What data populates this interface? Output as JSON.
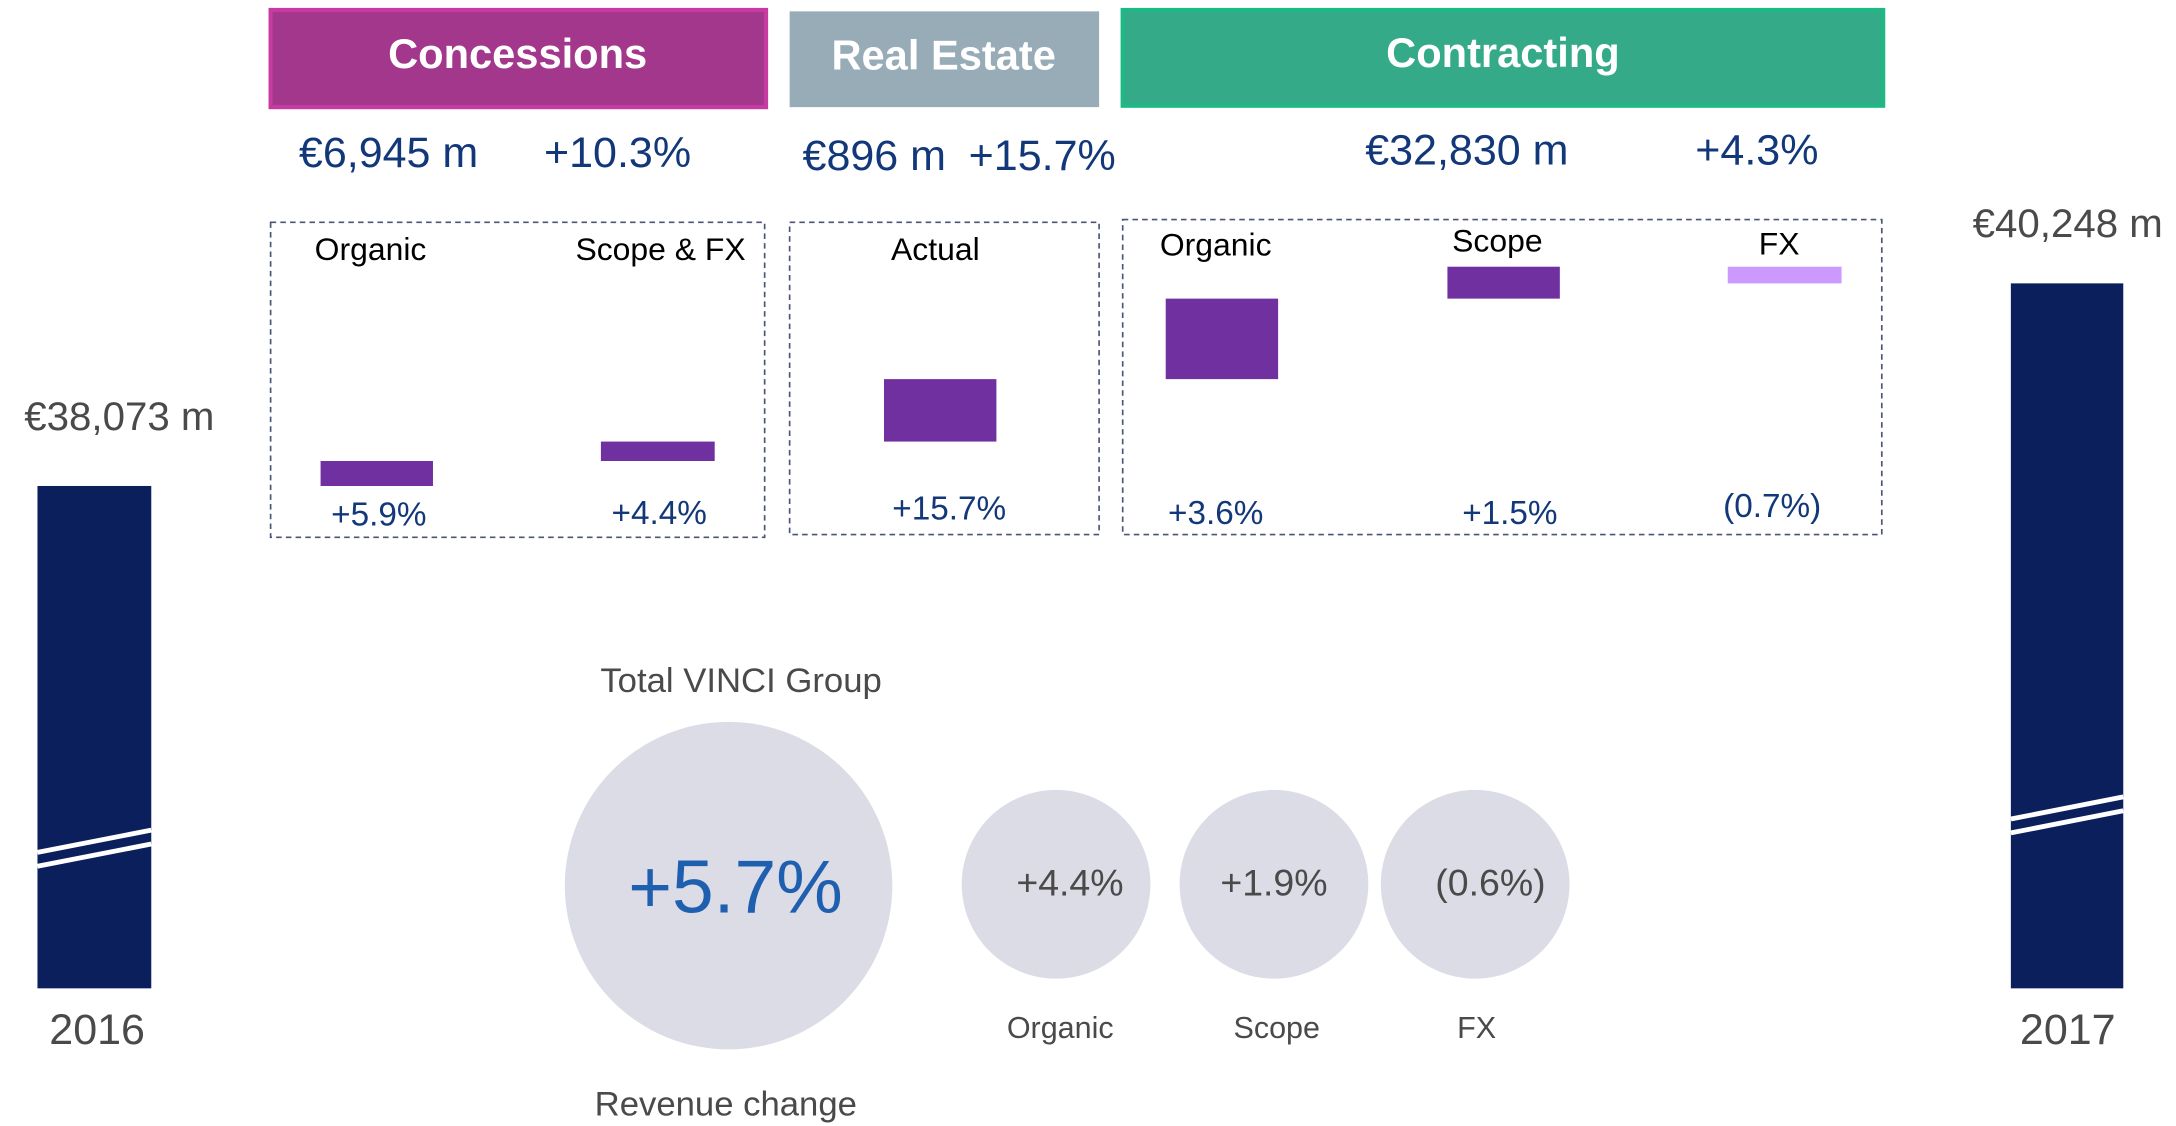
{
  "start": {
    "year": "2016",
    "value": "€38,073 m"
  },
  "end": {
    "year": "2017",
    "value": "€40,248 m"
  },
  "segments": [
    {
      "name": "Concessions",
      "revenue": "€6,945 m",
      "change": "+10.3%",
      "components": [
        {
          "label": "Organic",
          "value": "+5.9%"
        },
        {
          "label": "Scope & FX",
          "value": "+4.4%"
        }
      ]
    },
    {
      "name": "Real Estate",
      "revenue": "€896 m",
      "change": "+15.7%",
      "components": [
        {
          "label": "Actual",
          "value": "+15.7%"
        }
      ]
    },
    {
      "name": "Contracting",
      "revenue": "€32,830 m",
      "change": "+4.3%",
      "components": [
        {
          "label": "Organic",
          "value": "+3.6%"
        },
        {
          "label": "Scope",
          "value": "+1.5%"
        },
        {
          "label": "FX",
          "value": "(0.7%)"
        }
      ]
    }
  ],
  "total": {
    "title": "Total VINCI Group",
    "subtitle": "Revenue change",
    "value": "+5.7%",
    "components": [
      {
        "label": "Organic",
        "value": "+4.4%"
      },
      {
        "label": "Scope",
        "value": "+1.9%"
      },
      {
        "label": "FX",
        "value": "(0.6%)"
      }
    ]
  }
}
